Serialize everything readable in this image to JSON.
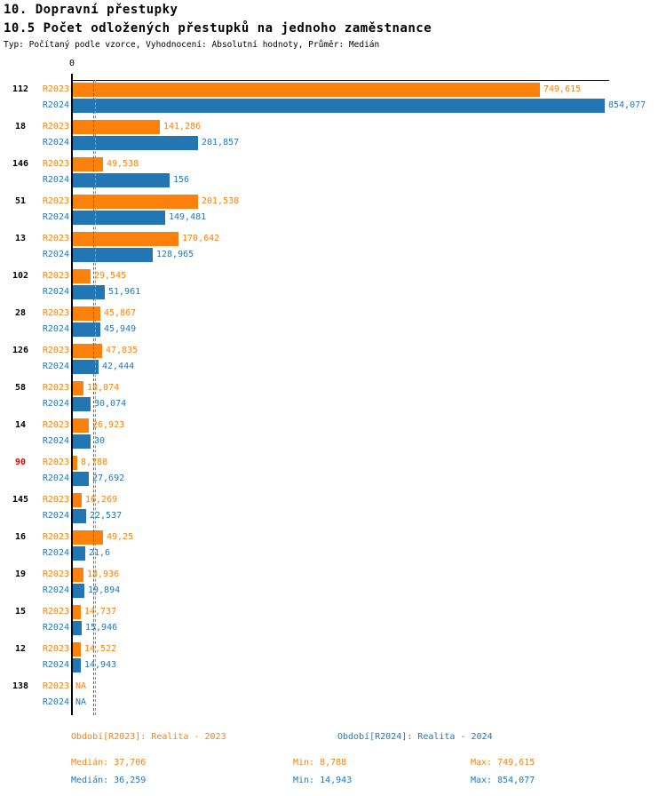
{
  "header": {
    "title_line1": "10. Dopravní přestupky",
    "title_line2": "10.5 Počet odložených přestupků na jednoho zaměstnance",
    "subtitle": "Typ: Počítaný podle vzorce, Vyhodnocení: Absolutní hodnoty, Průměr: Medián"
  },
  "axis": {
    "zero_label": "0"
  },
  "series_labels": {
    "r2023": "R2023",
    "r2024": "R2024"
  },
  "colors": {
    "r2023": "#fb810c",
    "r2024": "#2276b4",
    "alert_category": "#e00000",
    "axis": "#000000"
  },
  "rows": [
    {
      "category": "112",
      "alert": false,
      "r2023": {
        "value": 749.615,
        "value_label": "749,615"
      },
      "r2024": {
        "value": 854.077,
        "value_label": "854,077"
      }
    },
    {
      "category": "18",
      "alert": false,
      "r2023": {
        "value": 141.286,
        "value_label": "141,286"
      },
      "r2024": {
        "value": 201.857,
        "value_label": "201,857"
      }
    },
    {
      "category": "146",
      "alert": false,
      "r2023": {
        "value": 49.538,
        "value_label": "49,538"
      },
      "r2024": {
        "value": 156,
        "value_label": "156"
      }
    },
    {
      "category": "51",
      "alert": false,
      "r2023": {
        "value": 201.538,
        "value_label": "201,538"
      },
      "r2024": {
        "value": 149.481,
        "value_label": "149,481"
      }
    },
    {
      "category": "13",
      "alert": false,
      "r2023": {
        "value": 170.642,
        "value_label": "170,642"
      },
      "r2024": {
        "value": 128.965,
        "value_label": "128,965"
      }
    },
    {
      "category": "102",
      "alert": false,
      "r2023": {
        "value": 29.545,
        "value_label": "29,545"
      },
      "r2024": {
        "value": 51.961,
        "value_label": "51,961"
      }
    },
    {
      "category": "28",
      "alert": false,
      "r2023": {
        "value": 45.867,
        "value_label": "45,867"
      },
      "r2024": {
        "value": 45.949,
        "value_label": "45,949"
      }
    },
    {
      "category": "126",
      "alert": false,
      "r2023": {
        "value": 47.835,
        "value_label": "47,835"
      },
      "r2024": {
        "value": 42.444,
        "value_label": "42,444"
      }
    },
    {
      "category": "58",
      "alert": false,
      "r2023": {
        "value": 18.074,
        "value_label": "18,074"
      },
      "r2024": {
        "value": 30.074,
        "value_label": "30,074"
      }
    },
    {
      "category": "14",
      "alert": false,
      "r2023": {
        "value": 26.923,
        "value_label": "26,923"
      },
      "r2024": {
        "value": 30,
        "value_label": "30"
      }
    },
    {
      "category": "90",
      "alert": true,
      "r2023": {
        "value": 8.788,
        "value_label": "8,788"
      },
      "r2024": {
        "value": 27.692,
        "value_label": "27,692"
      }
    },
    {
      "category": "145",
      "alert": false,
      "r2023": {
        "value": 16.269,
        "value_label": "16,269"
      },
      "r2024": {
        "value": 22.537,
        "value_label": "22,537"
      }
    },
    {
      "category": "16",
      "alert": false,
      "r2023": {
        "value": 49.25,
        "value_label": "49,25"
      },
      "r2024": {
        "value": 21.6,
        "value_label": "21,6"
      }
    },
    {
      "category": "19",
      "alert": false,
      "r2023": {
        "value": 18.936,
        "value_label": "18,936"
      },
      "r2024": {
        "value": 19.894,
        "value_label": "19,894"
      }
    },
    {
      "category": "15",
      "alert": false,
      "r2023": {
        "value": 14.737,
        "value_label": "14,737"
      },
      "r2024": {
        "value": 15.946,
        "value_label": "15,946"
      }
    },
    {
      "category": "12",
      "alert": false,
      "r2023": {
        "value": 14.522,
        "value_label": "14,522"
      },
      "r2024": {
        "value": 14.943,
        "value_label": "14,943"
      }
    },
    {
      "category": "138",
      "alert": false,
      "r2023": {
        "value": null,
        "value_label": "NA"
      },
      "r2024": {
        "value": null,
        "value_label": "NA"
      }
    }
  ],
  "footer": {
    "legend_r2023": "Období[R2023]: Realita - 2023",
    "legend_r2024": "Období[R2024]: Realita - 2024",
    "stats_r2023": {
      "median": "Medián: 37,706",
      "min": "Min: 8,788",
      "max": "Max: 749,615"
    },
    "stats_r2024": {
      "median": "Medián: 36,259",
      "min": "Min: 14,943",
      "max": "Max: 854,077"
    }
  },
  "chart_data": {
    "type": "bar",
    "orientation": "horizontal",
    "title": "10.5 Počet odložených přestupků na jednoho zaměstnance",
    "categories": [
      "112",
      "18",
      "146",
      "51",
      "13",
      "102",
      "28",
      "126",
      "58",
      "14",
      "90",
      "145",
      "16",
      "19",
      "15",
      "12",
      "138"
    ],
    "series": [
      {
        "name": "R2023",
        "color": "#fb810c",
        "values": [
          749.615,
          141.286,
          49.538,
          201.538,
          170.642,
          29.545,
          45.867,
          47.835,
          18.074,
          26.923,
          8.788,
          16.269,
          49.25,
          18.936,
          14.737,
          14.522,
          null
        ]
      },
      {
        "name": "R2024",
        "color": "#2276b4",
        "values": [
          854.077,
          201.857,
          156,
          149.481,
          128.965,
          51.961,
          45.949,
          42.444,
          30.074,
          30,
          27.692,
          22.537,
          21.6,
          19.894,
          15.946,
          14.943,
          null
        ]
      }
    ],
    "xlim": [
      0,
      860
    ],
    "grid": false,
    "legend_position": "bottom",
    "annotations": {
      "median_lines": [
        {
          "series": "R2023",
          "value": 37.706
        },
        {
          "series": "R2024",
          "value": 36.259
        }
      ],
      "min": {
        "R2023": 8.788,
        "R2024": 14.943
      },
      "max": {
        "R2023": 749.615,
        "R2024": 854.077
      }
    }
  }
}
